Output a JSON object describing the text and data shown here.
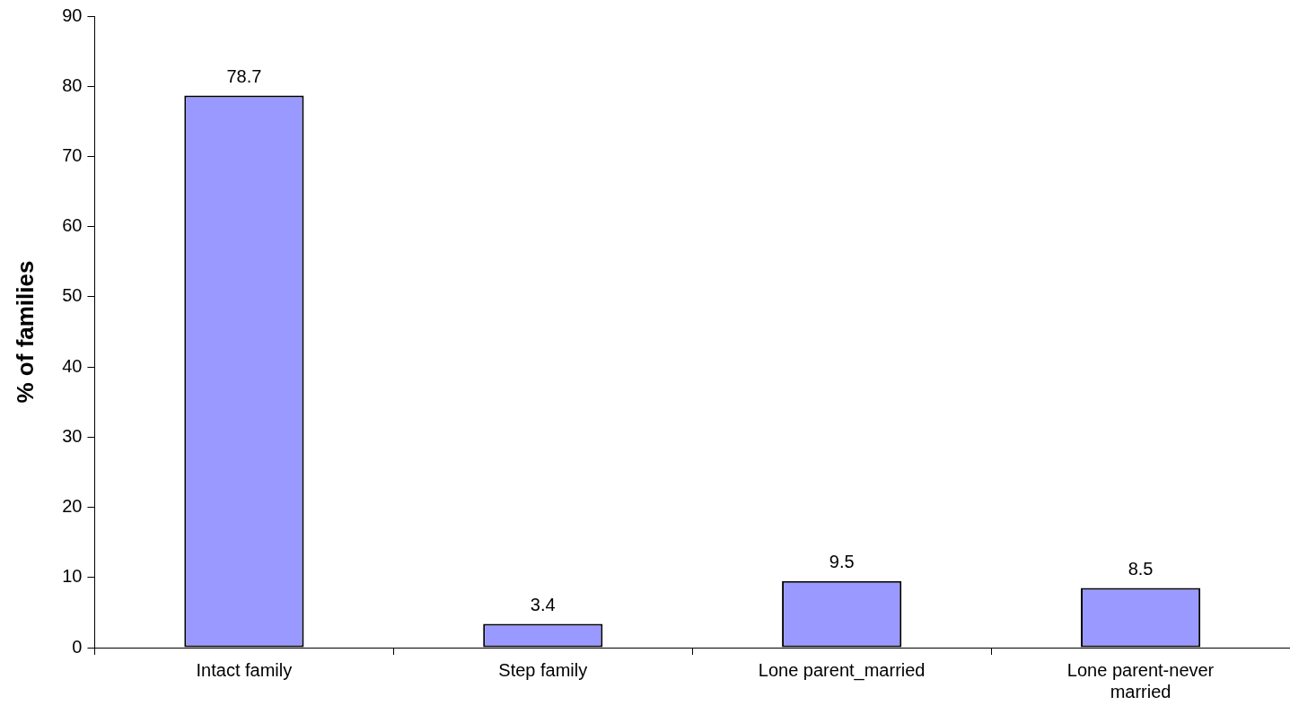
{
  "chart_data": {
    "type": "bar",
    "ylabel": "% of families",
    "categories": [
      "Intact family",
      "Step family",
      "Lone parent_married",
      "Lone parent-never married"
    ],
    "values": [
      78.7,
      3.4,
      9.5,
      8.5
    ],
    "color": "#9999ff",
    "ylim": [
      0,
      90
    ],
    "yticks": [
      0,
      10,
      20,
      30,
      40,
      50,
      60,
      70,
      80,
      90
    ],
    "grid": false,
    "legend": false,
    "data_labels": true
  }
}
